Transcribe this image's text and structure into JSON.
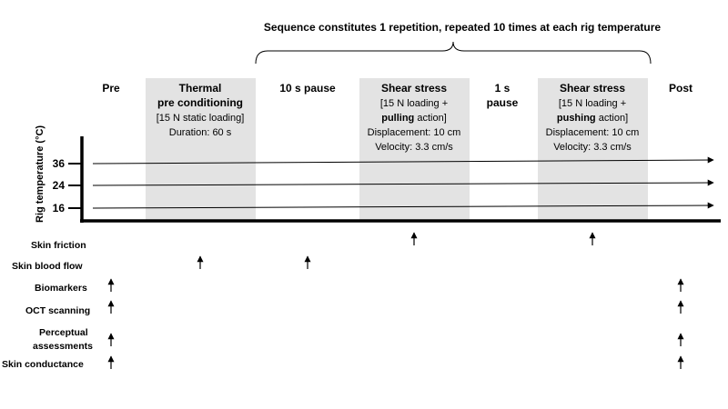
{
  "sequence_note": "Sequence constitutes 1 repetition, repeated 10 times at each rig temperature",
  "y_axis_label": "Rig temperature (°C)",
  "temperatures": [
    "36",
    "24",
    "16"
  ],
  "phases": {
    "pre": "Pre",
    "thermal": {
      "title_1": "Thermal",
      "title_2": "pre conditioning",
      "line_1": "[15 N static loading]",
      "line_2": "Duration: 60 s"
    },
    "pause10": "10 s pause",
    "shear_pull": {
      "title": "Shear stress",
      "line_1": "[15 N loading +",
      "line_2_bold": "pulling",
      "line_2_rest": " action]",
      "line_3": "Displacement: 10 cm",
      "line_4": "Velocity: 3.3 cm/s"
    },
    "pause1": {
      "line_1": "1 s",
      "line_2": "pause"
    },
    "shear_push": {
      "title": "Shear stress",
      "line_1": "[15 N loading +",
      "line_2_bold": "pushing",
      "line_2_rest": " action]",
      "line_3": "Displacement: 10 cm",
      "line_4": "Velocity: 3.3 cm/s"
    },
    "post": "Post"
  },
  "measurements": {
    "skin_friction": "Skin friction",
    "skin_blood_flow": "Skin blood flow",
    "biomarkers": "Biomarkers",
    "oct_scanning": "OCT scanning",
    "perceptual_1": "Perceptual",
    "perceptual_2": "assessments",
    "skin_conductance": "Skin conductance"
  }
}
